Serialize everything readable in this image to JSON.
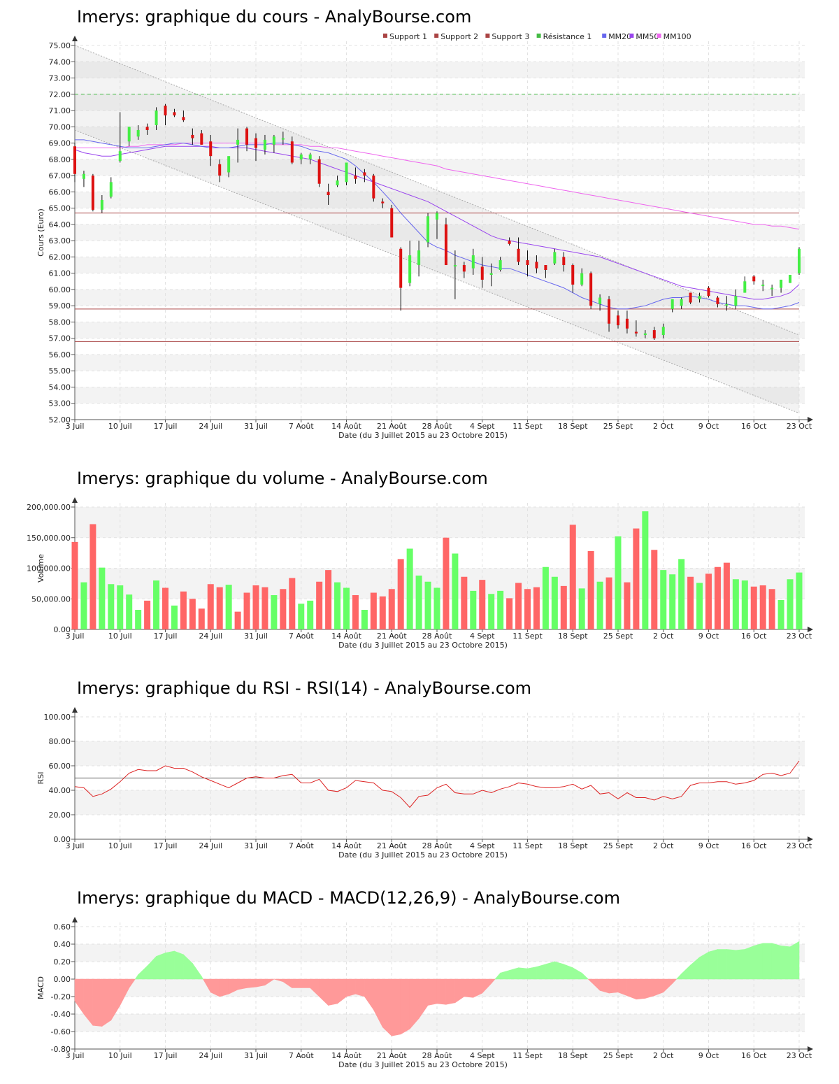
{
  "titles": {
    "price": "Imerys: graphique du cours - AnalyBourse.com",
    "volume": "Imerys: graphique du volume - AnalyBourse.com",
    "rsi": "Imerys: graphique du RSI - RSI(14) - AnalyBourse.com",
    "macd": "Imerys: graphique du MACD - MACD(12,26,9) - AnalyBourse.com"
  },
  "xlabel": "Date (du 3 Juillet 2015 au 23 Octobre 2015)",
  "x_ticks": [
    "3 Juil",
    "10 Juil",
    "17 Juil",
    "24 Juil",
    "31 Juil",
    "7 Août",
    "14 Août",
    "21 Août",
    "28 Août",
    "4 Sept",
    "11 Sept",
    "18 Sept",
    "25 Sept",
    "2 Oct",
    "9 Oct",
    "16 Oct",
    "23 Oct"
  ],
  "colors": {
    "up": "#44ee44",
    "down": "#dd1111",
    "vol_up": "#66ff66",
    "vol_down": "#ff6666",
    "support": "#aa4444",
    "resistance": "#44bb44",
    "mm20": "#6666ee",
    "mm50": "#9944ee",
    "mm100": "#ee66ee",
    "rsi": "#dd2222",
    "macd_pos": "#99ff99",
    "macd_neg": "#ff9999"
  },
  "chart_data": [
    {
      "type": "candlestick",
      "ylabel": "Cours (Euro)",
      "ylim": [
        52,
        75
      ],
      "y_ticks": [
        "52.00",
        "53.00",
        "54.00",
        "55.00",
        "56.00",
        "57.00",
        "58.00",
        "59.00",
        "60.00",
        "61.00",
        "62.00",
        "63.00",
        "64.00",
        "65.00",
        "66.00",
        "67.00",
        "68.00",
        "69.00",
        "70.00",
        "71.00",
        "72.00",
        "73.00",
        "74.00",
        "75.00"
      ],
      "legend": [
        "Support 1",
        "Support 2",
        "Support 3",
        "Résistance 1",
        "MM20",
        "MM50",
        "MM100"
      ],
      "levels": {
        "support1": 64.7,
        "support2": 58.8,
        "support3": 56.8,
        "resistance1": 72.0
      },
      "ohlc": [
        [
          68.8,
          69.0,
          66.6,
          67.1
        ],
        [
          66.8,
          67.3,
          66.3,
          67.1
        ],
        [
          67.0,
          67.1,
          64.8,
          64.9
        ],
        [
          64.9,
          65.8,
          64.7,
          65.5
        ],
        [
          65.7,
          66.9,
          65.6,
          66.6
        ],
        [
          67.9,
          70.9,
          67.8,
          68.5
        ],
        [
          69.1,
          70.0,
          68.8,
          70.0
        ],
        [
          69.4,
          70.1,
          69.2,
          69.8
        ],
        [
          70.0,
          70.2,
          69.5,
          69.8
        ],
        [
          70.1,
          71.2,
          69.8,
          71.0
        ],
        [
          71.3,
          71.4,
          70.1,
          70.7
        ],
        [
          70.9,
          71.1,
          70.6,
          70.7
        ],
        [
          70.6,
          71.0,
          70.3,
          70.4
        ],
        [
          69.5,
          69.9,
          68.9,
          69.3
        ],
        [
          69.6,
          69.8,
          68.9,
          68.9
        ],
        [
          69.1,
          69.5,
          67.6,
          68.2
        ],
        [
          67.7,
          68.0,
          66.6,
          67.0
        ],
        [
          67.2,
          68.0,
          66.9,
          68.2
        ],
        [
          68.9,
          69.9,
          67.8,
          69.2
        ],
        [
          69.9,
          70.0,
          68.5,
          68.9
        ],
        [
          69.3,
          69.6,
          67.9,
          68.7
        ],
        [
          68.6,
          69.5,
          68.3,
          69.2
        ],
        [
          68.9,
          69.5,
          68.4,
          69.4
        ],
        [
          69.3,
          69.7,
          68.9,
          69.3
        ],
        [
          69.1,
          69.4,
          67.7,
          67.8
        ],
        [
          68.0,
          68.4,
          67.7,
          68.3
        ],
        [
          68.0,
          68.4,
          67.7,
          68.3
        ],
        [
          68.0,
          68.2,
          66.3,
          66.5
        ],
        [
          66.0,
          66.5,
          65.2,
          65.8
        ],
        [
          66.4,
          67.0,
          66.3,
          66.7
        ],
        [
          66.6,
          67.6,
          66.4,
          67.8
        ],
        [
          67.0,
          67.5,
          66.5,
          66.8
        ],
        [
          67.2,
          67.4,
          66.6,
          67.0
        ],
        [
          67.0,
          67.1,
          65.4,
          65.6
        ],
        [
          65.4,
          65.6,
          65.0,
          65.3
        ],
        [
          65.0,
          65.2,
          63.2,
          63.2
        ],
        [
          62.5,
          62.6,
          58.7,
          60.1
        ],
        [
          60.4,
          63.0,
          60.2,
          62.1
        ],
        [
          61.5,
          63.0,
          60.8,
          62.4
        ],
        [
          62.9,
          64.7,
          62.6,
          64.5
        ],
        [
          64.3,
          64.8,
          63.1,
          64.7
        ],
        [
          64.0,
          64.4,
          61.6,
          61.5
        ],
        [
          61.5,
          62.4,
          59.4,
          61.5
        ],
        [
          61.5,
          61.7,
          60.7,
          61.1
        ],
        [
          61.3,
          62.5,
          60.9,
          62.1
        ],
        [
          61.4,
          62.0,
          60.1,
          60.6
        ],
        [
          60.9,
          61.6,
          60.2,
          61.0
        ],
        [
          61.2,
          62.0,
          61.1,
          61.8
        ],
        [
          63.0,
          63.2,
          62.7,
          62.8
        ],
        [
          62.5,
          63.2,
          61.5,
          61.7
        ],
        [
          61.8,
          62.4,
          60.8,
          61.5
        ],
        [
          61.7,
          62.1,
          61.0,
          61.3
        ],
        [
          61.5,
          61.5,
          60.7,
          61.2
        ],
        [
          61.6,
          62.5,
          61.5,
          62.3
        ],
        [
          62.0,
          62.3,
          61.1,
          61.5
        ],
        [
          61.5,
          61.6,
          59.8,
          60.3
        ],
        [
          60.3,
          61.3,
          60.2,
          61.0
        ],
        [
          61.0,
          61.1,
          58.8,
          59.0
        ],
        [
          59.1,
          59.7,
          58.7,
          59.5
        ],
        [
          59.4,
          59.6,
          57.4,
          57.9
        ],
        [
          58.4,
          58.7,
          57.6,
          57.8
        ],
        [
          58.2,
          58.7,
          57.3,
          57.6
        ],
        [
          57.4,
          58.1,
          57.1,
          57.3
        ],
        [
          57.2,
          57.5,
          57.0,
          57.3
        ],
        [
          57.5,
          57.7,
          56.9,
          57.0
        ],
        [
          57.2,
          57.9,
          57.0,
          57.7
        ],
        [
          58.8,
          59.4,
          58.6,
          59.4
        ],
        [
          59.0,
          59.5,
          58.8,
          59.4
        ],
        [
          59.8,
          59.8,
          59.1,
          59.2
        ],
        [
          59.4,
          59.8,
          59.2,
          59.6
        ],
        [
          60.1,
          60.2,
          59.5,
          59.6
        ],
        [
          59.5,
          59.6,
          58.9,
          59.1
        ],
        [
          59.1,
          59.6,
          58.7,
          59.1
        ],
        [
          59.0,
          60.0,
          58.8,
          59.6
        ],
        [
          59.8,
          60.8,
          59.8,
          60.5
        ],
        [
          60.8,
          60.9,
          60.3,
          60.5
        ],
        [
          60.3,
          60.6,
          59.9,
          60.3
        ],
        [
          60.1,
          60.3,
          59.6,
          60.1
        ],
        [
          60.1,
          60.6,
          59.8,
          60.6
        ],
        [
          60.4,
          60.8,
          60.4,
          60.9
        ],
        [
          61.0,
          62.6,
          60.9,
          62.5
        ]
      ],
      "mm20": [
        69.2,
        69.2,
        69.1,
        69.0,
        68.9,
        68.8,
        68.7,
        68.7,
        68.7,
        68.8,
        68.9,
        69.0,
        69.0,
        68.9,
        68.8,
        68.7,
        68.7,
        68.7,
        68.8,
        68.9,
        68.9,
        68.9,
        69.0,
        69.0,
        68.9,
        68.8,
        68.6,
        68.5,
        68.4,
        68.2,
        68.0,
        67.6,
        67.1,
        66.6,
        66.0,
        65.4,
        64.7,
        64.1,
        63.5,
        62.9,
        62.6,
        62.4,
        62.1,
        61.9,
        61.7,
        61.5,
        61.4,
        61.3,
        61.3,
        61.1,
        60.9,
        60.7,
        60.5,
        60.3,
        60.1,
        59.8,
        59.5,
        59.3,
        59.1,
        58.9,
        58.8,
        58.8,
        58.9,
        59.0,
        59.2,
        59.4,
        59.5,
        59.5,
        59.6,
        59.5,
        59.4,
        59.2,
        59.1,
        59.0,
        59.0,
        58.9,
        58.8,
        58.8,
        58.9,
        59.0,
        59.2
      ],
      "mm50": [
        68.6,
        68.4,
        68.3,
        68.2,
        68.2,
        68.3,
        68.4,
        68.5,
        68.6,
        68.7,
        68.8,
        68.8,
        68.8,
        68.8,
        68.8,
        68.8,
        68.7,
        68.7,
        68.7,
        68.7,
        68.6,
        68.5,
        68.4,
        68.3,
        68.2,
        68.1,
        68.0,
        67.8,
        67.6,
        67.4,
        67.2,
        67.0,
        66.8,
        66.6,
        66.4,
        66.2,
        66.0,
        65.8,
        65.6,
        65.4,
        65.1,
        64.8,
        64.5,
        64.2,
        63.9,
        63.6,
        63.3,
        63.1,
        63.0,
        62.9,
        62.8,
        62.7,
        62.6,
        62.5,
        62.4,
        62.3,
        62.2,
        62.1,
        62.0,
        61.8,
        61.6,
        61.4,
        61.2,
        61.0,
        60.8,
        60.6,
        60.4,
        60.2,
        60.1,
        60.0,
        59.9,
        59.8,
        59.7,
        59.6,
        59.5,
        59.4,
        59.4,
        59.5,
        59.6,
        59.8,
        60.3
      ],
      "mm100": [
        68.7,
        68.7,
        68.7,
        68.7,
        68.7,
        68.7,
        68.8,
        68.8,
        68.9,
        68.9,
        68.9,
        68.9,
        69.0,
        69.0,
        69.0,
        69.0,
        69.0,
        69.0,
        69.0,
        69.0,
        69.0,
        69.0,
        68.9,
        68.9,
        68.9,
        68.9,
        68.8,
        68.8,
        68.7,
        68.7,
        68.6,
        68.5,
        68.4,
        68.3,
        68.2,
        68.1,
        68.0,
        67.9,
        67.8,
        67.7,
        67.6,
        67.4,
        67.3,
        67.2,
        67.1,
        67.0,
        66.9,
        66.8,
        66.7,
        66.6,
        66.5,
        66.4,
        66.3,
        66.2,
        66.1,
        66.0,
        65.9,
        65.8,
        65.7,
        65.6,
        65.5,
        65.4,
        65.3,
        65.2,
        65.1,
        65.0,
        64.9,
        64.8,
        64.7,
        64.6,
        64.5,
        64.4,
        64.3,
        64.2,
        64.1,
        64.0,
        64.0,
        63.9,
        63.9,
        63.8,
        63.7
      ],
      "channel": {
        "upper": [
          75.0,
          57.2
        ],
        "lower": [
          69.8,
          52.4
        ]
      }
    },
    {
      "type": "bar",
      "ylabel": "Volume",
      "ylim": [
        0,
        200000
      ],
      "y_ticks": [
        "0.00",
        "50,000.00",
        "100,000.00",
        "150,000.00",
        "200,000.00"
      ],
      "values": [
        143000,
        77000,
        172000,
        101000,
        74000,
        72000,
        57000,
        32000,
        47000,
        80000,
        68000,
        39000,
        62000,
        50000,
        34000,
        74000,
        69000,
        73000,
        29000,
        60000,
        72000,
        69000,
        56000,
        66000,
        84000,
        42000,
        47000,
        78000,
        97000,
        77000,
        68000,
        56000,
        32000,
        60000,
        54000,
        66000,
        115000,
        132000,
        88000,
        78000,
        68000,
        150000,
        124000,
        86000,
        63000,
        81000,
        58000,
        63000,
        51000,
        76000,
        66000,
        69000,
        102000,
        86000,
        71000,
        171000,
        67000,
        128000,
        78000,
        85000,
        152000,
        77000,
        165000,
        193000,
        130000,
        97000,
        90000,
        115000,
        86000,
        76000,
        91000,
        102000,
        109000,
        82000,
        80000,
        70000,
        72000,
        66000,
        48000,
        82000,
        93000
      ],
      "up": [
        0,
        1,
        0,
        1,
        1,
        1,
        1,
        1,
        0,
        1,
        0,
        1,
        0,
        0,
        0,
        0,
        0,
        1,
        0,
        0,
        0,
        0,
        1,
        0,
        0,
        1,
        1,
        0,
        0,
        1,
        1,
        0,
        1,
        0,
        0,
        0,
        0,
        1,
        1,
        1,
        1,
        0,
        1,
        0,
        1,
        0,
        1,
        1,
        0,
        0,
        0,
        0,
        1,
        1,
        0,
        0,
        1,
        0,
        1,
        0,
        1,
        0,
        0,
        1,
        0,
        1,
        1,
        1,
        0,
        1,
        0,
        0,
        0,
        1,
        1,
        0,
        0,
        0,
        1,
        1,
        1
      ]
    },
    {
      "type": "line",
      "ylabel": "RSI",
      "ylim": [
        0,
        100
      ],
      "y_ticks": [
        "0.00",
        "20.00",
        "40.00",
        "60.00",
        "80.00",
        "100.00"
      ],
      "reference": 50,
      "values": [
        43,
        42,
        35,
        37,
        41,
        47,
        54,
        57,
        56,
        56,
        60,
        58,
        58,
        55,
        51,
        48,
        45,
        42,
        46,
        50,
        51,
        50,
        50,
        52,
        53,
        46,
        46,
        49,
        40,
        39,
        42,
        48,
        47,
        46,
        40,
        39,
        34,
        26,
        35,
        36,
        42,
        45,
        38,
        37,
        37,
        40,
        38,
        41,
        43,
        46,
        45,
        43,
        42,
        42,
        43,
        45,
        41,
        44,
        37,
        38,
        33,
        38,
        34,
        34,
        32,
        35,
        33,
        35,
        44,
        46,
        46,
        47,
        47,
        45,
        46,
        48,
        53,
        54,
        52,
        54,
        64
      ]
    },
    {
      "type": "area",
      "ylabel": "MACD",
      "ylim": [
        -0.8,
        0.6
      ],
      "y_ticks": [
        "-0.80",
        "-0.60",
        "-0.40",
        "-0.20",
        "0.00",
        "0.20",
        "0.40",
        "0.60"
      ],
      "values": [
        -0.25,
        -0.4,
        -0.53,
        -0.54,
        -0.47,
        -0.3,
        -0.1,
        0.05,
        0.15,
        0.26,
        0.3,
        0.32,
        0.28,
        0.18,
        0.03,
        -0.15,
        -0.2,
        -0.17,
        -0.12,
        -0.1,
        -0.09,
        -0.07,
        0.0,
        -0.03,
        -0.1,
        -0.1,
        -0.1,
        -0.2,
        -0.3,
        -0.28,
        -0.2,
        -0.17,
        -0.2,
        -0.35,
        -0.55,
        -0.65,
        -0.63,
        -0.57,
        -0.45,
        -0.3,
        -0.28,
        -0.29,
        -0.27,
        -0.2,
        -0.21,
        -0.16,
        -0.05,
        0.07,
        0.1,
        0.13,
        0.12,
        0.14,
        0.17,
        0.2,
        0.17,
        0.13,
        0.07,
        -0.03,
        -0.13,
        -0.16,
        -0.15,
        -0.19,
        -0.23,
        -0.22,
        -0.19,
        -0.15,
        -0.05,
        0.06,
        0.16,
        0.25,
        0.31,
        0.34,
        0.34,
        0.33,
        0.34,
        0.38,
        0.41,
        0.41,
        0.38,
        0.37,
        0.43
      ]
    }
  ]
}
